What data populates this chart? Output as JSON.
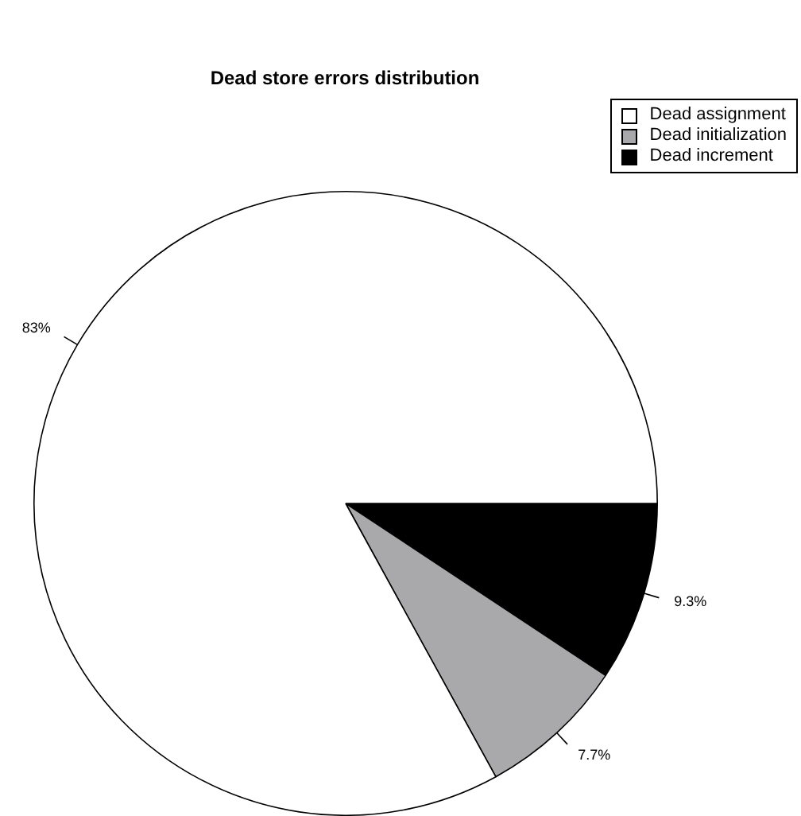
{
  "chart_data": {
    "type": "pie",
    "title": "Dead store errors distribution",
    "categories": [
      "Dead assignment",
      "Dead initialization",
      "Dead increment"
    ],
    "values": [
      83,
      7.7,
      9.3
    ],
    "colors": [
      "#ffffff",
      "#a9a9ab",
      "#000000"
    ],
    "value_labels": [
      "83%",
      "7.7%",
      "9.3%"
    ],
    "legend": "top right"
  }
}
